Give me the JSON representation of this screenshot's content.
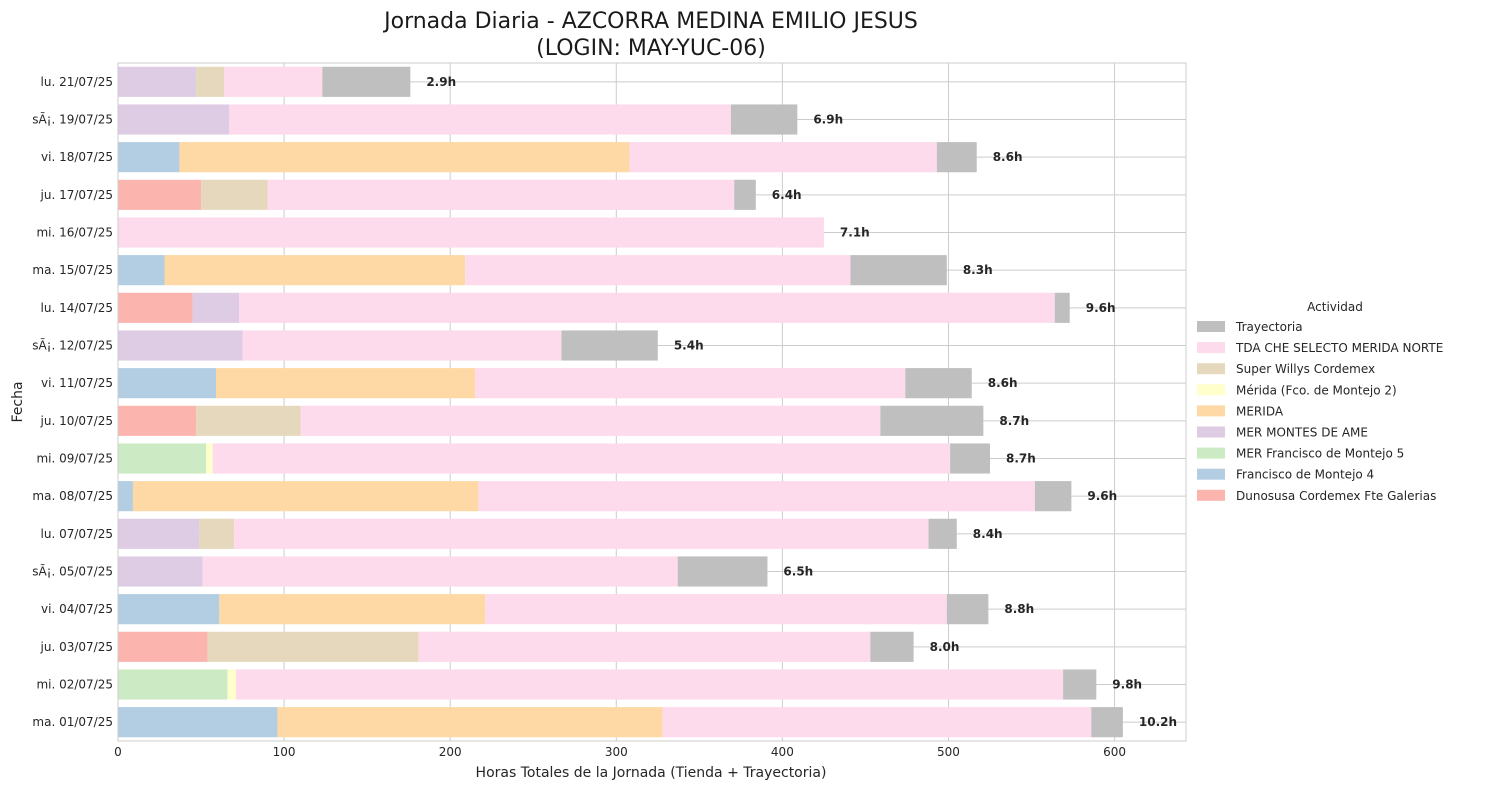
{
  "chart_data": {
    "type": "bar",
    "orientation": "horizontal",
    "stacked": true,
    "title": "Jornada Diaria - AZCORRA MEDINA EMILIO JESUS",
    "subtitle": "(LOGIN: MAY-YUC-06)",
    "xlabel": "Horas Totales de la Jornada (Tienda + Trayectoria)",
    "ylabel": "Fecha",
    "xlim": [
      0,
      643
    ],
    "xticks": [
      0,
      100,
      200,
      300,
      400,
      500,
      600
    ],
    "grid": true,
    "legend_title": "Actividad",
    "legend_position": "right",
    "categories": [
      "lu. 21/07/25",
      "sÃ¡. 19/07/25",
      "vi. 18/07/25",
      "ju. 17/07/25",
      "mi. 16/07/25",
      "ma. 15/07/25",
      "lu. 14/07/25",
      "sÃ¡. 12/07/25",
      "vi. 11/07/25",
      "ju. 10/07/25",
      "mi. 09/07/25",
      "ma. 08/07/25",
      "lu. 07/07/25",
      "sÃ¡. 05/07/25",
      "vi. 04/07/25",
      "ju. 03/07/25",
      "mi. 02/07/25",
      "ma. 01/07/25"
    ],
    "stack_order": [
      "Dunosusa Cordemex Fte Galerias",
      "Francisco de Montejo 4",
      "MER Francisco de Montejo 5",
      "MER MONTES DE AME",
      "MERIDA",
      "Mérida (Fco. de Montejo 2)",
      "Super Willys Cordemex",
      "TDA CHE SELECTO MERIDA NORTE",
      "Trayectoria"
    ],
    "series": [
      {
        "name": "Trayectoria",
        "color": "#bfbfbf",
        "values": [
          53,
          40,
          24,
          13,
          0,
          58,
          9,
          58,
          40,
          62,
          24,
          22,
          17,
          54,
          25,
          26,
          20,
          19
        ]
      },
      {
        "name": "TDA CHE SELECTO MERIDA NORTE",
        "color": "#fddaec",
        "values": [
          59,
          302,
          185,
          281,
          425,
          232,
          491,
          192,
          259,
          349,
          444,
          335,
          418,
          286,
          278,
          272,
          498,
          258
        ]
      },
      {
        "name": "Super Willys Cordemex",
        "color": "#e5d8bd",
        "values": [
          17,
          0,
          0,
          40,
          0,
          0,
          0,
          0,
          0,
          63,
          0,
          0,
          21,
          0,
          0,
          127,
          0,
          0
        ]
      },
      {
        "name": "Mérida (Fco. de Montejo 2)",
        "color": "#ffffcc",
        "values": [
          0,
          0,
          0,
          0,
          0,
          0,
          0,
          0,
          0,
          0,
          4,
          0,
          0,
          0,
          0,
          0,
          5,
          0
        ]
      },
      {
        "name": "MERIDA",
        "color": "#fed9a6",
        "values": [
          0,
          0,
          271,
          0,
          0,
          181,
          0,
          0,
          156,
          0,
          0,
          208,
          0,
          0,
          160,
          0,
          0,
          232
        ]
      },
      {
        "name": "MER MONTES DE AME",
        "color": "#decbe4",
        "values": [
          47,
          67,
          0,
          0,
          0,
          0,
          28,
          75,
          0,
          0,
          0,
          0,
          49,
          51,
          0,
          0,
          0,
          0
        ]
      },
      {
        "name": "MER Francisco de Montejo 5",
        "color": "#ccebc5",
        "values": [
          0,
          0,
          0,
          0,
          0,
          0,
          0,
          0,
          0,
          0,
          53,
          0,
          0,
          0,
          0,
          0,
          66,
          0
        ]
      },
      {
        "name": "Francisco de Montejo 4",
        "color": "#b3cde3",
        "values": [
          0,
          0,
          37,
          0,
          0,
          28,
          0,
          0,
          59,
          0,
          0,
          9,
          0,
          0,
          61,
          0,
          0,
          96
        ]
      },
      {
        "name": "Dunosusa Cordemex Fte Galerias",
        "color": "#fbb4ae",
        "values": [
          0,
          0,
          0,
          50,
          0,
          0,
          45,
          0,
          0,
          47,
          0,
          0,
          0,
          0,
          0,
          54,
          0,
          0
        ]
      }
    ],
    "total_labels": [
      "2.9h",
      "6.9h",
      "8.6h",
      "6.4h",
      "7.1h",
      "8.3h",
      "9.6h",
      "5.4h",
      "8.6h",
      "8.7h",
      "8.7h",
      "9.6h",
      "8.4h",
      "6.5h",
      "8.8h",
      "8.0h",
      "9.8h",
      "10.2h"
    ]
  }
}
